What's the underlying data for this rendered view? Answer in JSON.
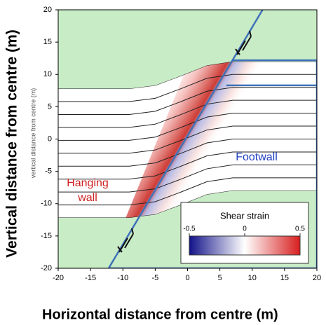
{
  "chart_data": {
    "type": "fault",
    "xlabel": "Horizontal distance from centre (m)",
    "ylabel": "Vertical distance from centre (m)",
    "inner_ylabel": "vertical distance from centre (m)",
    "xlim": [
      -20,
      20
    ],
    "ylim": [
      -20,
      20
    ],
    "xticks": [
      -20,
      -15,
      -10,
      -5,
      0,
      5,
      10,
      15,
      20
    ],
    "yticks": [
      -20,
      -15,
      -10,
      -5,
      0,
      5,
      10,
      15,
      20
    ],
    "background": "#c8ecc6",
    "layer_color": "#222222",
    "x": [
      -20,
      -9,
      -5,
      -1,
      3,
      7,
      20
    ],
    "series": [
      {
        "values": [
          7.8,
          7.8,
          8.3,
          9.8,
          11.4,
          12.0,
          12.0
        ]
      },
      {
        "values": [
          5.8,
          5.8,
          6.3,
          7.8,
          9.4,
          10.0,
          10.0
        ]
      },
      {
        "values": [
          3.8,
          3.8,
          4.3,
          5.8,
          7.4,
          8.0,
          8.0
        ]
      },
      {
        "values": [
          1.8,
          1.8,
          2.3,
          3.8,
          5.4,
          6.0,
          6.0
        ]
      },
      {
        "values": [
          -0.2,
          -0.2,
          0.3,
          1.8,
          3.4,
          4.0,
          4.0
        ]
      },
      {
        "values": [
          -2.2,
          -2.2,
          -1.7,
          -0.2,
          1.4,
          2.0,
          2.0
        ]
      },
      {
        "values": [
          -4.2,
          -4.2,
          -3.7,
          -2.2,
          -0.6,
          0.0,
          0.0
        ]
      },
      {
        "values": [
          -6.2,
          -6.2,
          -5.7,
          -4.2,
          -2.6,
          -2.0,
          -2.0
        ]
      },
      {
        "values": [
          -8.2,
          -8.2,
          -7.7,
          -6.2,
          -4.6,
          -4.0,
          -4.0
        ]
      },
      {
        "values": [
          -10.2,
          -10.2,
          -9.7,
          -8.2,
          -6.6,
          -6.0,
          -6.0
        ]
      },
      {
        "values": [
          -12.2,
          -12.2,
          -11.7,
          -10.2,
          -8.6,
          -8.0,
          -8.0
        ]
      }
    ],
    "boundaries": [
      {
        "x": [
          -12.2,
          11.6
        ],
        "y": [
          -20,
          20
        ],
        "color": "#3f72b8"
      },
      {
        "x": [
          7,
          20
        ],
        "y": [
          12.2,
          12.2
        ],
        "color": "#3f72b8"
      },
      {
        "x": [
          6,
          20
        ],
        "y": [
          8.3,
          8.3
        ],
        "color": "#3f72b8"
      },
      {
        "x": [
          20,
          20,
          -12.2
        ],
        "y": [
          12.2,
          -20,
          -20
        ],
        "color": "#3f72b8"
      }
    ],
    "annotations": [
      {
        "text": [
          "Hanging",
          "wall"
        ],
        "color": "#d02020"
      },
      {
        "text": [
          "Footwall"
        ],
        "color": "#2040c0"
      }
    ],
    "colorbar": {
      "label": "Shear strain",
      "lim": [
        -0.5,
        0.5
      ],
      "ticks": [
        -0.5,
        0,
        0.5
      ],
      "colors": [
        "#12128a",
        "#ffffff",
        "#d81e1e"
      ]
    }
  }
}
